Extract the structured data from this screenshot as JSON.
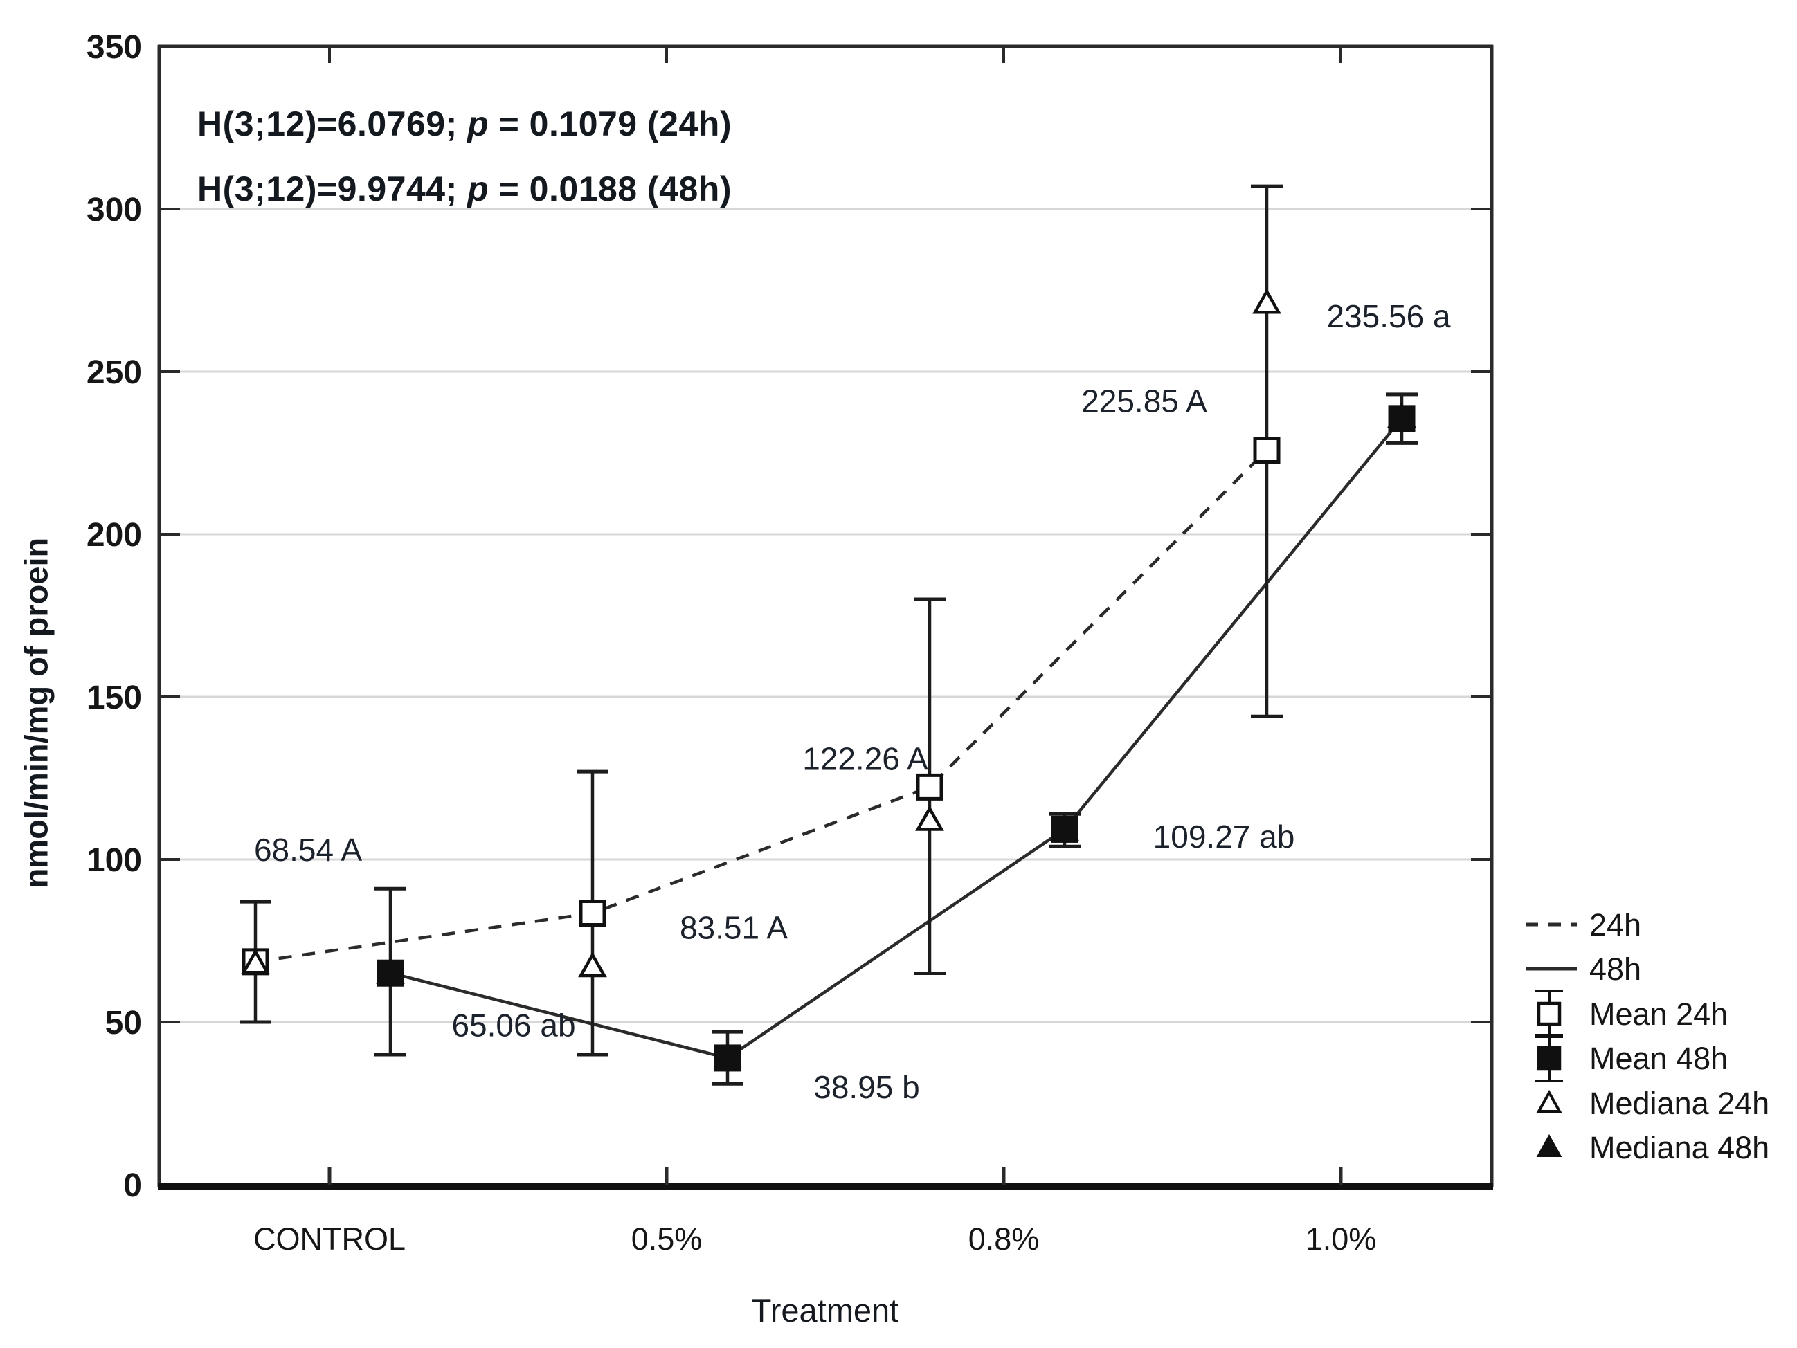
{
  "figure": {
    "stats": [
      {
        "prefix": "H(3;12)=6.0769; ",
        "p": "p",
        "suffix": " = 0.1079 (24h)"
      },
      {
        "prefix": "H(3;12)=9.9744; ",
        "p": "p",
        "suffix": " = 0.0188 (48h)"
      }
    ]
  },
  "chart_data": {
    "type": "line",
    "title": "",
    "categories": [
      "CONTROL",
      "0.5%",
      "0.8%",
      "1.0%"
    ],
    "xlabel": "Treatment",
    "ylabel": "nmol/min/mg of proein",
    "ylim": [
      0,
      350
    ],
    "yticks": [
      0,
      50,
      100,
      150,
      200,
      250,
      300,
      350
    ],
    "grid": "horizontal-only",
    "annotations": [
      "H(3;12)=6.0769; p = 0.1079 (24h)",
      "H(3;12)=9.9744; p = 0.0188 (48h)"
    ],
    "legend": {
      "position": "outside-right",
      "items": [
        "24h",
        "48h",
        "Mean 24h",
        "Mean 48h",
        "Mediana 24h",
        "Mediana 48h"
      ]
    },
    "series": [
      {
        "name": "24h",
        "line": "dashed",
        "marker": "open-square",
        "means": [
          68.54,
          83.51,
          122.26,
          225.85
        ],
        "whisker_low": [
          50,
          40,
          65,
          144
        ],
        "whisker_high": [
          87,
          127,
          180,
          307
        ],
        "point_labels": [
          "68.54 A",
          "83.51 A",
          "122.26 A",
          "225.85 A"
        ]
      },
      {
        "name": "48h",
        "line": "solid",
        "marker": "filled-square",
        "means": [
          65.06,
          38.95,
          109.27,
          235.56
        ],
        "whisker_low": [
          40,
          31,
          104,
          228
        ],
        "whisker_high": [
          91,
          47,
          114,
          243
        ],
        "point_labels": [
          "65.06 ab",
          "38.95 b",
          "109.27 ab",
          "235.56 a"
        ]
      }
    ],
    "medians": [
      {
        "name": "Mediana 24h",
        "marker": "open-triangle",
        "values": [
          68,
          67,
          112,
          271
        ]
      },
      {
        "name": "Mediana 48h",
        "marker": "filled-triangle",
        "values": [
          65,
          39,
          109,
          236
        ]
      }
    ],
    "colors": {
      "ink": "#1a1a1a",
      "border": "#2a2a2a",
      "grid": "#d7d7d7",
      "label": "#1c222c",
      "background": "#ffffff"
    }
  }
}
